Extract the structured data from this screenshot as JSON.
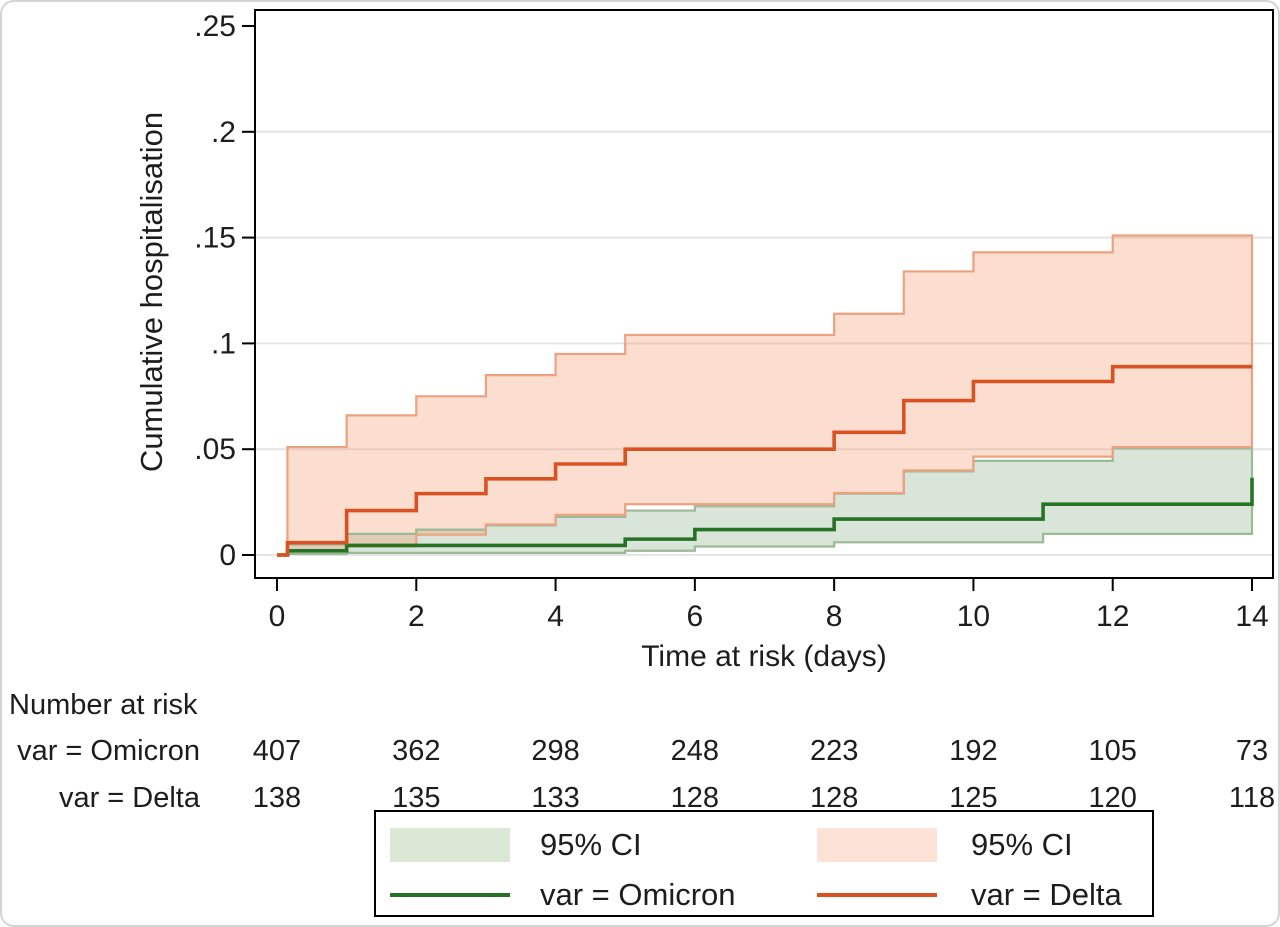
{
  "chart_data": {
    "type": "line",
    "subtype": "kaplan-meier-cumulative-incidence-steps-with-95ci-bands",
    "title": "",
    "xlabel": "Time at risk (days)",
    "ylabel": "Cumulative hospitalisation",
    "xlim": [
      0,
      14
    ],
    "ylim": [
      0,
      0.25
    ],
    "grid": "horizontal-only",
    "grid_values": [
      0,
      0.05,
      0.1,
      0.15,
      0.2
    ],
    "x_ticks": {
      "values": [
        0,
        2,
        4,
        6,
        8,
        10,
        12,
        14
      ],
      "labels": [
        "0",
        "2",
        "4",
        "6",
        "8",
        "10",
        "12",
        "14"
      ]
    },
    "y_ticks": {
      "values": [
        0,
        0.05,
        0.1,
        0.15,
        0.2,
        0.25
      ],
      "labels": [
        "0",
        ".05",
        ".1",
        ".15",
        ".2",
        ".25"
      ]
    },
    "series": [
      {
        "name": "var = Omicron",
        "color_key": "omicron",
        "estimate": [
          [
            0,
            0
          ],
          [
            0.15,
            0.002
          ],
          [
            1,
            0.0045
          ],
          [
            5,
            0.0075
          ],
          [
            6,
            0.012
          ],
          [
            8,
            0.017
          ],
          [
            11,
            0.024
          ],
          [
            14,
            0.0365
          ]
        ],
        "upper_ci": [
          [
            0.15,
            0.005
          ],
          [
            1,
            0.01
          ],
          [
            2,
            0.012
          ],
          [
            3,
            0.014
          ],
          [
            4,
            0.018
          ],
          [
            5,
            0.021
          ],
          [
            6,
            0.023
          ],
          [
            8,
            0.029
          ],
          [
            9,
            0.0395
          ],
          [
            10,
            0.0445
          ],
          [
            12,
            0.0505
          ]
        ],
        "lower_ci": [
          [
            0.15,
            0.0005
          ],
          [
            1,
            0.001
          ],
          [
            5,
            0.002
          ],
          [
            6,
            0.004
          ],
          [
            8,
            0.006
          ],
          [
            11,
            0.01
          ],
          [
            14,
            0.0135
          ]
        ]
      },
      {
        "name": "var = Delta",
        "color_key": "delta",
        "estimate": [
          [
            0,
            0
          ],
          [
            0.15,
            0.0058
          ],
          [
            1,
            0.021
          ],
          [
            2,
            0.029
          ],
          [
            3,
            0.036
          ],
          [
            4,
            0.043
          ],
          [
            5,
            0.05
          ],
          [
            8,
            0.058
          ],
          [
            9,
            0.073
          ],
          [
            10,
            0.082
          ],
          [
            12,
            0.089
          ]
        ],
        "upper_ci": [
          [
            0.15,
            0.051
          ],
          [
            1,
            0.066
          ],
          [
            2,
            0.075
          ],
          [
            3,
            0.085
          ],
          [
            4,
            0.095
          ],
          [
            5,
            0.104
          ],
          [
            8,
            0.114
          ],
          [
            9,
            0.134
          ],
          [
            10,
            0.143
          ],
          [
            12,
            0.151
          ]
        ],
        "lower_ci": [
          [
            0.15,
            0.002
          ],
          [
            1,
            0.004
          ],
          [
            2,
            0.0096
          ],
          [
            3,
            0.0144
          ],
          [
            4,
            0.019
          ],
          [
            5,
            0.024
          ],
          [
            8,
            0.0293
          ],
          [
            9,
            0.04
          ],
          [
            10,
            0.0465
          ],
          [
            12,
            0.051
          ]
        ]
      }
    ],
    "at_risk": {
      "header": "Number at risk",
      "times": [
        0,
        2,
        4,
        6,
        8,
        10,
        12,
        14
      ],
      "rows": [
        {
          "label": "var = Omicron",
          "values": [
            "407",
            "362",
            "298",
            "248",
            "223",
            "192",
            "105",
            "73"
          ]
        },
        {
          "label": "var = Delta",
          "values": [
            "138",
            "135",
            "133",
            "128",
            "128",
            "125",
            "120",
            "118"
          ]
        }
      ]
    }
  },
  "legend": {
    "items": [
      {
        "type": "area",
        "color_key": "omicron",
        "label": "95% CI"
      },
      {
        "type": "area",
        "color_key": "delta",
        "label": "95% CI"
      },
      {
        "type": "line",
        "color_key": "omicron",
        "label": "var = Omicron"
      },
      {
        "type": "line",
        "color_key": "delta",
        "label": "var = Delta"
      }
    ]
  },
  "colors": {
    "axis": "#000000",
    "text": "#1d1d1d",
    "grid": "#e4e4e4",
    "frame": "#d4d4d4",
    "omicron_line": "#267326",
    "omicron_fill": "#669966",
    "omicron_fill_solid": "#dbe8d6",
    "omicron_edge": "#9cb995",
    "delta_line": "#d95322",
    "delta_fill": "#f29a70",
    "delta_fill_solid": "#fce2d7",
    "delta_edge": "#eca181"
  }
}
